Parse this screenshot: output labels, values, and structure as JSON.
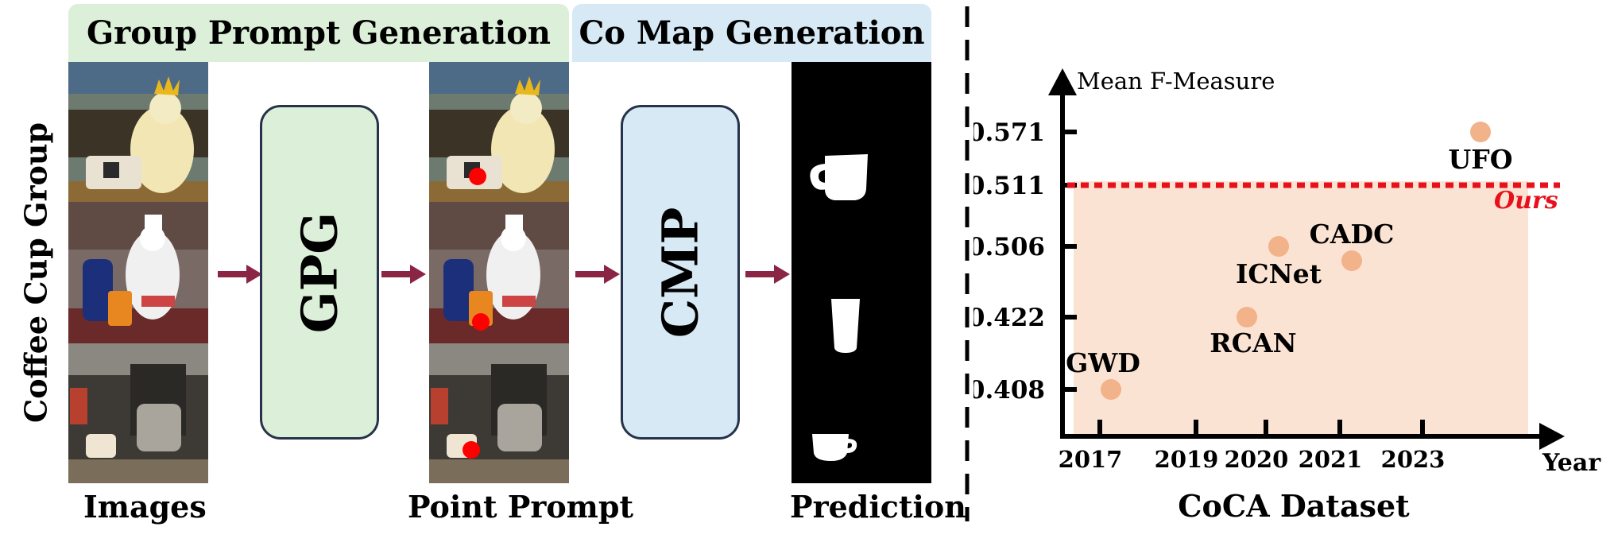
{
  "pipeline": {
    "group_prompt_generation": "Group Prompt Generation",
    "co_map_generation": "Co Map Generation",
    "group_label": "Coffee Cup Group",
    "gpg_module": "GPG",
    "cmp_module": "CMP",
    "images_label": "Images",
    "point_prompt_label": "Point Prompt",
    "prediction_label": "Prediction",
    "colors": {
      "gpg_box": "#dcefd8",
      "cmp_box": "#d6e9f5",
      "arrow": "#8b2545",
      "prompt_point": "#ff0000"
    }
  },
  "chart_data": {
    "type": "scatter",
    "title": "",
    "xlabel": "Year",
    "ylabel": "Mean F-Measure",
    "caption": "CoCA Dataset",
    "x_ticks": [
      "2017",
      "2019",
      "2020",
      "2021",
      "2023"
    ],
    "y_ticks": [
      "0.408",
      "0.422",
      "0.506",
      "0.511",
      "0.571"
    ],
    "points": [
      {
        "name": "GWD",
        "x": "2017",
        "y": 0.408
      },
      {
        "name": "RCAN",
        "x": "2019",
        "y": 0.422
      },
      {
        "name": "ICNet",
        "x": "2020",
        "y": 0.506
      },
      {
        "name": "CADC",
        "x": "2021",
        "y": 0.506
      },
      {
        "name": "UFO",
        "x": "2023",
        "y": 0.571
      }
    ],
    "reference_line": {
      "name": "Ours",
      "y": 0.511,
      "color": "#e8101a"
    },
    "colors": {
      "point": "#f2b28a",
      "shade": "#fbe3d3"
    }
  }
}
